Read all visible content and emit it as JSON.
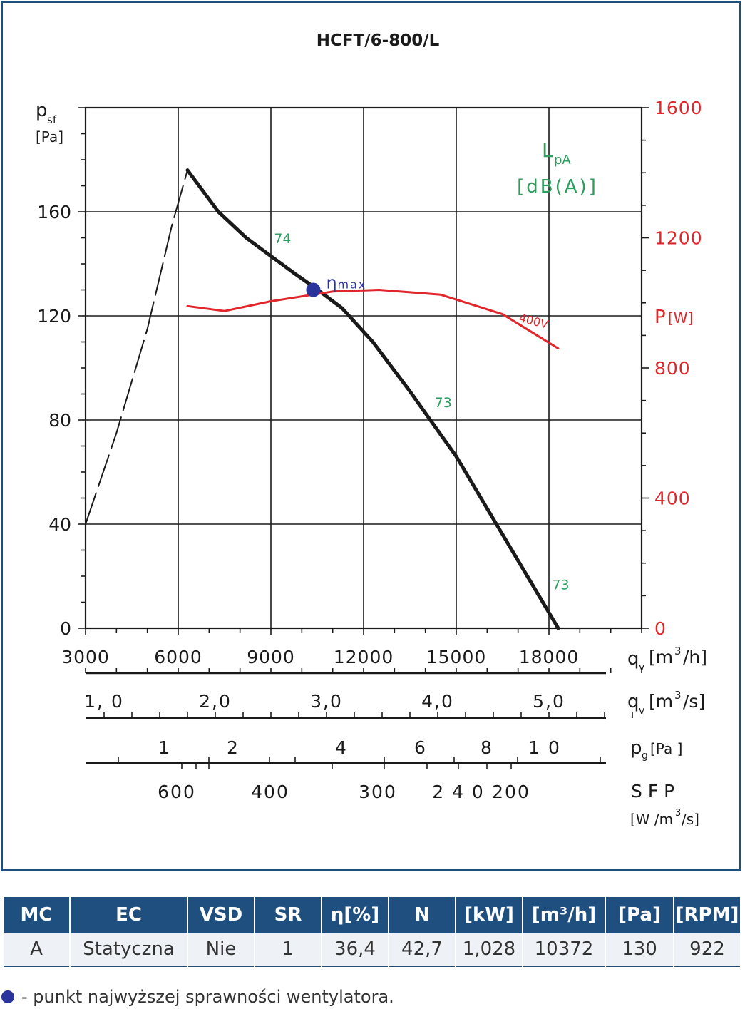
{
  "chart_data": {
    "type": "line",
    "title": "HCFT/6-800/L",
    "xlabel": "q_v [m³/h]",
    "ylabel": "p_sf [Pa]",
    "y2label": "P [W]",
    "noise_label": "L_pA [dB(A)]",
    "xlim": [
      3000,
      21000
    ],
    "ylim": [
      0,
      200
    ],
    "y2lim": [
      0,
      1600
    ],
    "x_ticks": [
      3000,
      6000,
      9000,
      12000,
      15000,
      18000
    ],
    "y_ticks": [
      0,
      40,
      80,
      120,
      160
    ],
    "y2_ticks": [
      0,
      400,
      800,
      1200,
      1600
    ],
    "grid": true,
    "series": [
      {
        "role": "pressure",
        "color": "#1a1a1a",
        "x": [
          6300,
          7300,
          8200,
          9000,
          9800,
          10400,
          11300,
          12300,
          13500,
          15000,
          16600,
          17700,
          18300
        ],
        "y": [
          176,
          160,
          150,
          143,
          136,
          131,
          123,
          110,
          91,
          66,
          34,
          12,
          0
        ]
      },
      {
        "role": "pressure-unstable",
        "style": "dashed",
        "color": "#1a1a1a",
        "x": [
          3000,
          4000,
          5000,
          5800,
          6300
        ],
        "y": [
          40,
          75,
          115,
          155,
          176
        ]
      },
      {
        "name": "400V",
        "axis": "y2",
        "color": "#e0262b",
        "x": [
          6300,
          7500,
          9000,
          11000,
          12500,
          14500,
          16500,
          18300
        ],
        "y": [
          990,
          975,
          1005,
          1035,
          1040,
          1025,
          965,
          860
        ]
      }
    ],
    "noise_labels": [
      {
        "x": 9100,
        "y": 148,
        "text": "74"
      },
      {
        "x": 14300,
        "y": 85,
        "text": "73"
      },
      {
        "x": 18100,
        "y": 15,
        "text": "73"
      }
    ],
    "eta_max": {
      "x": 10372,
      "y": 130,
      "label": "η",
      "sub": "max"
    },
    "secondary_scales": [
      {
        "unit": "q_v [m³/s]",
        "ticks": [
          {
            "v": 1.0,
            "t": "1, 0"
          },
          {
            "v": 2.0,
            "t": "2,0"
          },
          {
            "v": 3.0,
            "t": "3,0"
          },
          {
            "v": 4.0,
            "t": "4,0"
          },
          {
            "v": 5.0,
            "t": "5,0"
          }
        ]
      },
      {
        "unit": "p_g [Pa ]",
        "ticks": [
          {
            "v": 1,
            "t": "1"
          },
          {
            "v": 2,
            "t": "2"
          },
          {
            "v": 4,
            "t": "4"
          },
          {
            "v": 6,
            "t": "6"
          },
          {
            "v": 8,
            "t": "8"
          },
          {
            "v": 10,
            "t": "1 0"
          }
        ]
      },
      {
        "unit": "S F P [W /m³/s]",
        "ticks": [
          {
            "v": 600,
            "t": "600"
          },
          {
            "v": 400,
            "t": "400"
          },
          {
            "v": 300,
            "t": "300"
          },
          {
            "v": 240,
            "t": "2 4 0"
          },
          {
            "v": 200,
            "t": "200"
          }
        ]
      }
    ],
    "colors": {
      "axes": "#1a1a1a",
      "power": "#e0262b",
      "noise": "#2e9e5e",
      "eta": "#2a349a",
      "frame": "#1f4f7e"
    }
  },
  "table": {
    "headers": [
      "MC",
      "EC",
      "VSD",
      "SR",
      "η[%]",
      "N",
      "[kW]",
      "[m³/h]",
      "[Pa]",
      "[RPM]"
    ],
    "rows": [
      [
        "A",
        "Statyczna",
        "Nie",
        "1",
        "36,4",
        "42,7",
        "1,028",
        "10372",
        "130",
        "922"
      ]
    ]
  },
  "legend_note": "- punkt najwyższej sprawności wentylatora."
}
